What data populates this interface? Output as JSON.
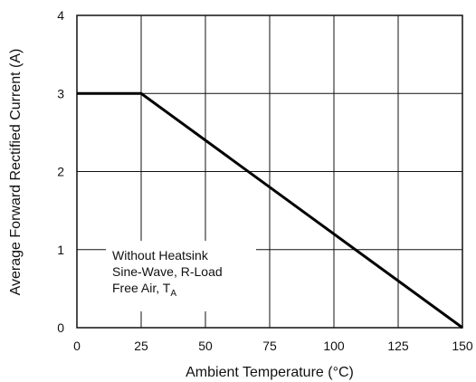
{
  "chart_data": {
    "type": "line",
    "xlabel": "Ambient Temperature (°C)",
    "ylabel": "Average Forward Rectified Current (A)",
    "xlim": [
      0,
      150
    ],
    "ylim": [
      0,
      4
    ],
    "x_ticks": [
      "0",
      "25",
      "50",
      "75",
      "100",
      "125",
      "150"
    ],
    "y_ticks": [
      "0",
      "1",
      "2",
      "3",
      "4"
    ],
    "grid": true,
    "series": [
      {
        "x": [
          0,
          25,
          150
        ],
        "y": [
          3,
          3,
          0
        ]
      }
    ],
    "annotation": {
      "line1": "Without Heatsink",
      "line2": "Sine-Wave, R-Load",
      "line3": "Free Air, T",
      "line3_subscript": "A"
    }
  }
}
